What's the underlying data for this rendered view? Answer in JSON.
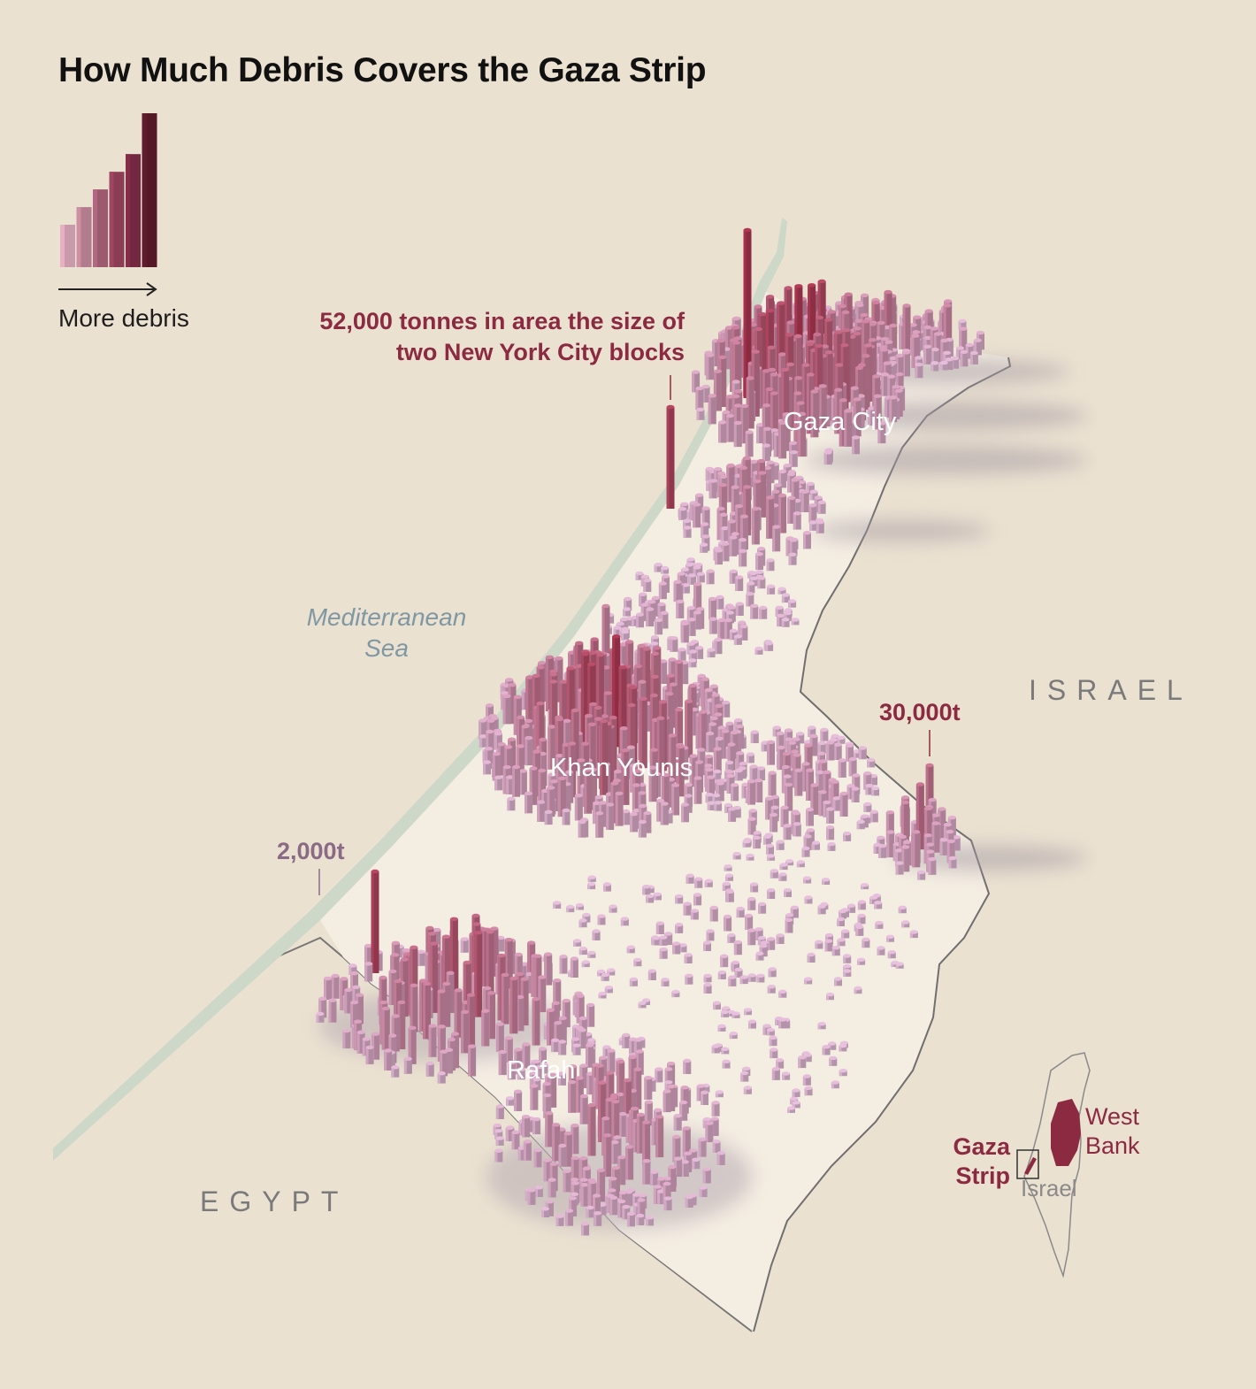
{
  "title": "How Much Debris Covers the Gaza Strip",
  "legend": {
    "label": "More debris",
    "levels": [
      1,
      2,
      3,
      4,
      5,
      6
    ],
    "colors": [
      "#c99aaa",
      "#b37c8e",
      "#9c5a6f",
      "#8a3d55",
      "#742741",
      "#541827"
    ]
  },
  "annotations": {
    "largest": "52,000 tonnes in area the size of two New York City blocks",
    "east_peak": "30,000t",
    "coastal_small": "2,000t"
  },
  "places": {
    "gaza_city": "Gaza City",
    "khan_younis": "Khan Younis",
    "rafah": "Rafah",
    "sea": "Mediterranean Sea",
    "israel": "ISRAEL",
    "egypt": "EGYPT"
  },
  "inset": {
    "gaza_strip": "Gaza Strip",
    "west_bank": "West Bank",
    "israel": "Israel"
  },
  "colors": {
    "background": "#ebe1d1",
    "strip_ground": "#f3ece0",
    "coast_band": "#cfd9cb",
    "border": "#6f6f6f",
    "low_debris": "#b79cb3",
    "high_debris": "#8b2a40",
    "annotation": "#8b2a40"
  }
}
